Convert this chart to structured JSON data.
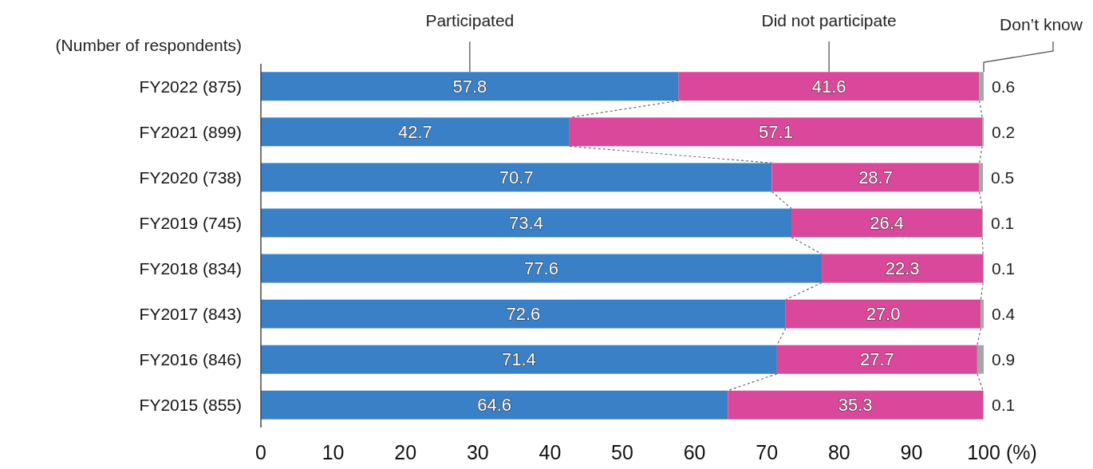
{
  "chart_data": {
    "type": "bar",
    "orientation": "horizontal",
    "stacked": true,
    "ylabel": "(Number of respondents)",
    "xlabel": "(%)",
    "categories": [
      "FY2022 (875)",
      "FY2021 (899)",
      "FY2020 (738)",
      "FY2019 (745)",
      "FY2018 (834)",
      "FY2017 (843)",
      "FY2016 (846)",
      "FY2015 (855)"
    ],
    "series": [
      {
        "name": "Participated",
        "color": "#3a80c6",
        "values": [
          57.8,
          42.7,
          70.7,
          73.4,
          77.6,
          72.6,
          71.4,
          64.6
        ],
        "value_labels": [
          "57.8",
          "42.7",
          "70.7",
          "73.4",
          "77.6",
          "72.6",
          "71.4",
          "64.6"
        ]
      },
      {
        "name": "Did not participate",
        "color": "#d9489a",
        "values": [
          41.6,
          57.1,
          28.7,
          26.4,
          22.3,
          27.0,
          27.7,
          35.3
        ],
        "value_labels": [
          "41.6",
          "57.1",
          "28.7",
          "26.4",
          "22.3",
          "27.0",
          "27.7",
          "35.3"
        ]
      },
      {
        "name": "Don’t know",
        "color": "#a6a6a6",
        "values": [
          0.6,
          0.2,
          0.5,
          0.1,
          0.1,
          0.4,
          0.9,
          0.1
        ],
        "value_labels": [
          "0.6",
          "0.2",
          "0.5",
          "0.1",
          "0.1",
          "0.4",
          "0.9",
          "0.1"
        ]
      }
    ],
    "xlim": [
      0,
      100
    ],
    "xticks": [
      0,
      10,
      20,
      30,
      40,
      50,
      60,
      70,
      80,
      90,
      100
    ],
    "legend": "top",
    "grid": false
  }
}
